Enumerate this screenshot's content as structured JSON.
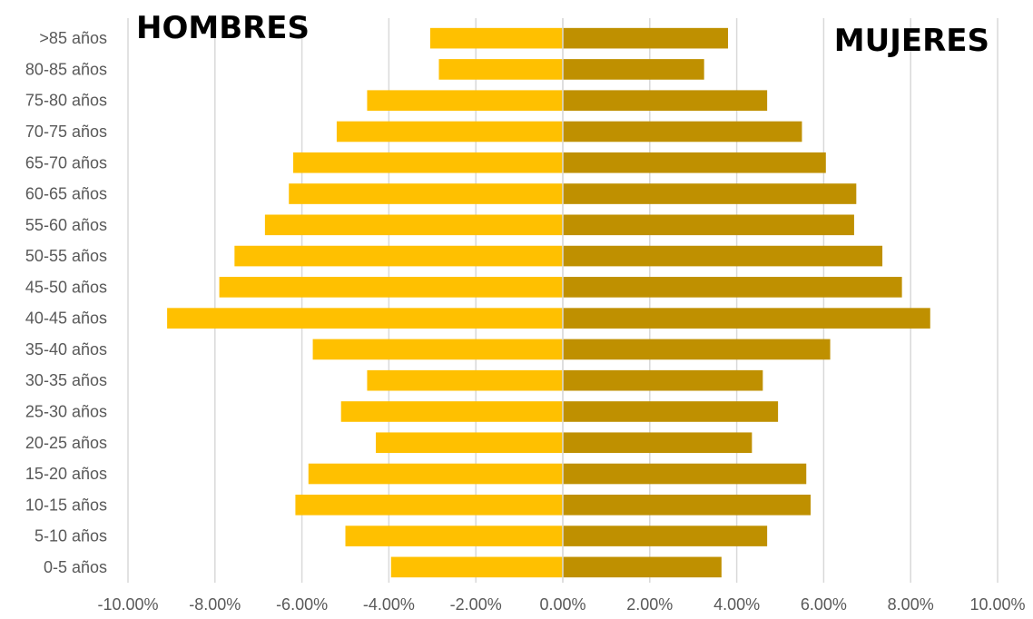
{
  "chart_data": {
    "type": "bar",
    "orientation": "horizontal",
    "categories": [
      "0-5 años",
      "5-10 años",
      "10-15 años",
      "15-20 años",
      "20-25 años",
      "25-30 años",
      "30-35 años",
      "35-40 años",
      "40-45 años",
      "45-50 años",
      "50-55 años",
      "55-60 años",
      "60-65 años",
      "65-70 años",
      "70-75 años",
      "75-80 años",
      "80-85 años",
      ">85 años"
    ],
    "series": [
      {
        "name": "HOMBRES",
        "color": "#FFC000",
        "values": [
          -3.95,
          -5.0,
          -6.15,
          -5.85,
          -4.3,
          -5.1,
          -4.5,
          -5.75,
          -9.1,
          -7.9,
          -7.55,
          -6.85,
          -6.3,
          -6.2,
          -5.2,
          -4.5,
          -2.85,
          -3.05
        ]
      },
      {
        "name": "MUJERES",
        "color": "#BF9000",
        "values": [
          3.65,
          4.7,
          5.7,
          5.6,
          4.35,
          4.95,
          4.6,
          6.15,
          8.45,
          7.8,
          7.35,
          6.7,
          6.75,
          6.05,
          5.5,
          4.7,
          3.25,
          3.8
        ]
      }
    ],
    "xlim": [
      -10,
      10
    ],
    "xticks": [
      "-10.00%",
      "-8.00%",
      "-6.00%",
      "-4.00%",
      "-2.00%",
      "0.00%",
      "2.00%",
      "4.00%",
      "6.00%",
      "8.00%",
      "10.00%"
    ],
    "grid": true,
    "labels": {
      "left": "HOMBRES",
      "right": "MUJERES"
    }
  }
}
